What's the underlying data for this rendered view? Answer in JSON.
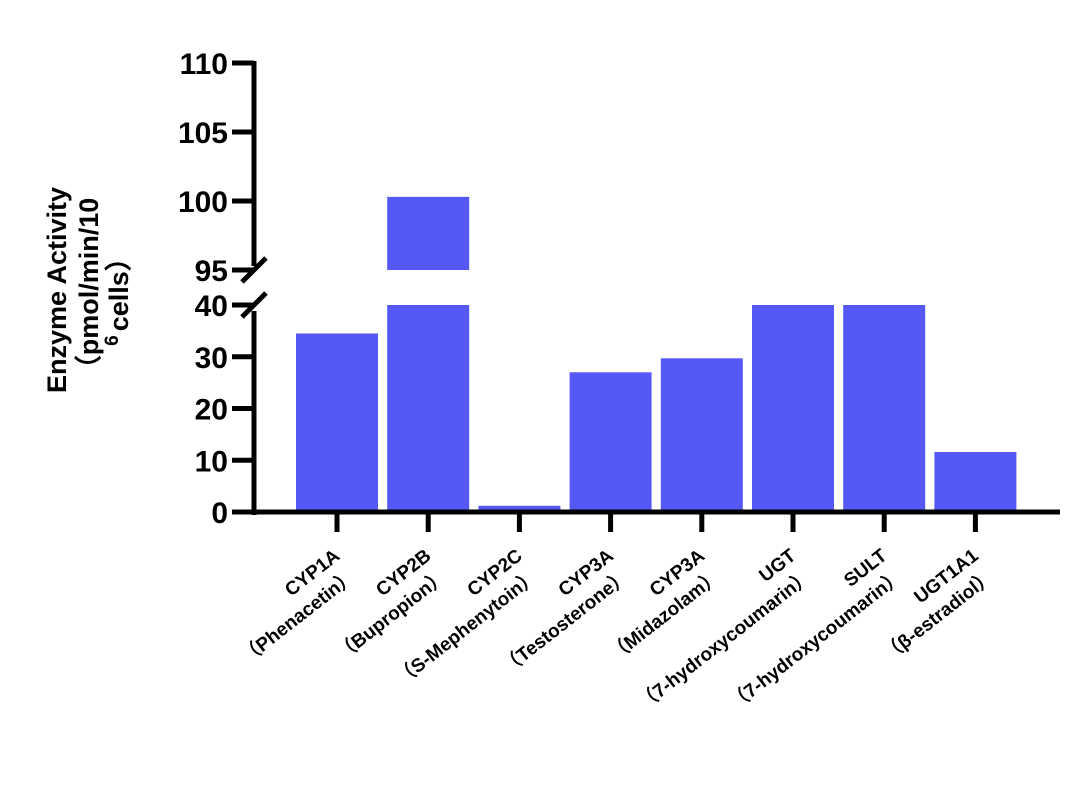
{
  "chart_data": {
    "type": "bar",
    "ylabel_lines": [
      "Enzyme Activity",
      "（pmol/min/10",
      "cells）"
    ],
    "ylabel_superscript": "6",
    "axis_break": {
      "lower_range": [
        0,
        40
      ],
      "upper_range": [
        95,
        110
      ]
    },
    "lower_ticks": [
      0,
      10,
      20,
      30,
      40
    ],
    "upper_ticks": [
      95,
      100,
      105,
      110
    ],
    "categories": [
      {
        "line1": "CYP1A",
        "line2": "（Phenacetin）"
      },
      {
        "line1": "CYP2B",
        "line2": "（Bupropion）"
      },
      {
        "line1": "CYP2C",
        "line2": "（S-Mephenytoin）"
      },
      {
        "line1": "CYP3A",
        "line2": "（Testosterone）"
      },
      {
        "line1": "CYP3A",
        "line2": "（Midazolam）"
      },
      {
        "line1": "UGT",
        "line2": "（7-hydroxycoumarin）"
      },
      {
        "line1": "SULT",
        "line2": "（7-hydroxycoumarin）"
      },
      {
        "line1": "UGT1A1",
        "line2": "（β-estradiol）"
      }
    ],
    "values": [
      34.5,
      100.3,
      1.2,
      27.0,
      29.7,
      40,
      40,
      11.6
    ],
    "bar_color": "#5558f5",
    "grid": false,
    "legend": "none"
  }
}
